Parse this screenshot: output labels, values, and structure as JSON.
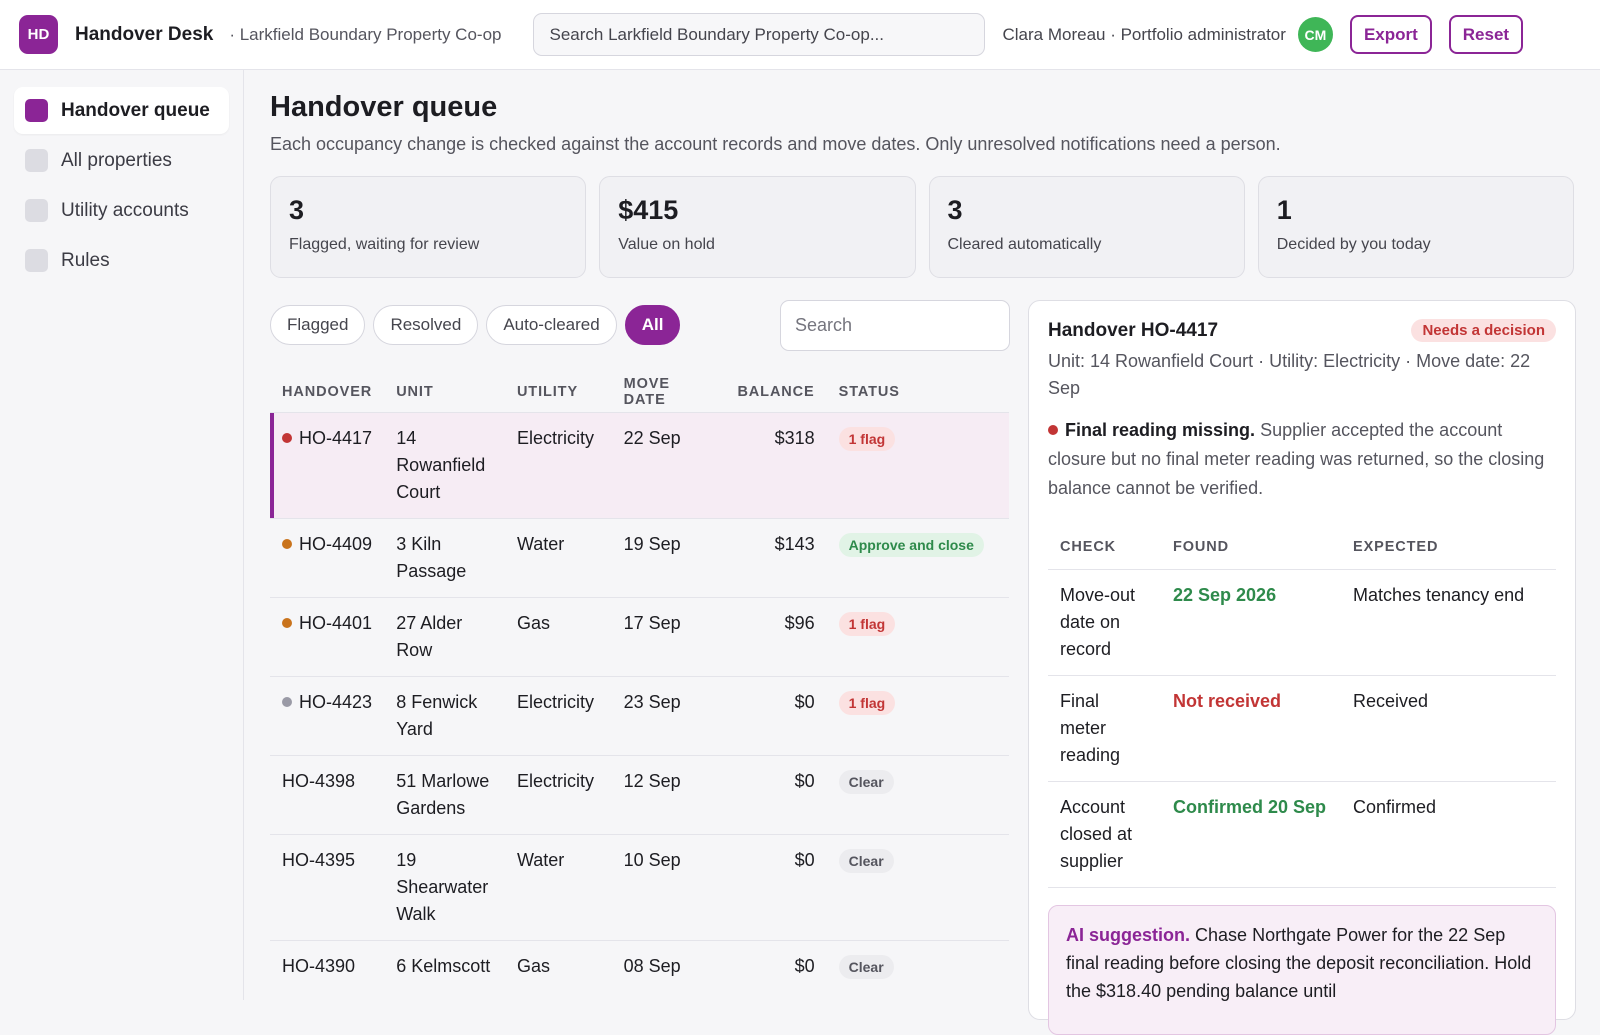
{
  "app": {
    "logo": "HD",
    "name": "Handover Desk",
    "org": "· Larkfield Boundary Property Co-op",
    "search_placeholder": "Search Larkfield Boundary Property Co-op...",
    "user": "Clara Moreau · Portfolio administrator",
    "avatar": "CM",
    "export_label": "Export",
    "reset_label": "Reset"
  },
  "sidebar": {
    "items": [
      {
        "label": "Handover queue",
        "active": true
      },
      {
        "label": "All properties",
        "active": false
      },
      {
        "label": "Utility accounts",
        "active": false
      },
      {
        "label": "Rules",
        "active": false
      }
    ]
  },
  "page": {
    "title": "Handover queue",
    "subtitle": "Each occupancy change is checked against the account records and move dates. Only unresolved notifications need a person."
  },
  "stats": [
    {
      "value": "3",
      "label": "Flagged, waiting for review"
    },
    {
      "value": "$415",
      "label": "Value on hold"
    },
    {
      "value": "3",
      "label": "Cleared automatically"
    },
    {
      "value": "1",
      "label": "Decided by you today"
    }
  ],
  "filters": {
    "chips": [
      "Flagged",
      "Resolved",
      "Auto-cleared",
      "All"
    ],
    "active": "All",
    "search_placeholder": "Search"
  },
  "queue": {
    "columns": [
      "HANDOVER",
      "UNIT",
      "UTILITY",
      "MOVE DATE",
      "BALANCE",
      "STATUS"
    ],
    "rows": [
      {
        "id": "HO-4417",
        "unit": "14 Rowanfield Court",
        "utility": "Electricity",
        "move": "22 Sep",
        "balance": "$318",
        "status": "1 flag",
        "kind": "flag",
        "dot": "#c23535",
        "selected": true
      },
      {
        "id": "HO-4409",
        "unit": "3 Kiln Passage",
        "utility": "Water",
        "move": "19 Sep",
        "balance": "$143",
        "status": "Approve and close",
        "kind": "ok",
        "dot": "#c9731c"
      },
      {
        "id": "HO-4401",
        "unit": "27 Alder Row",
        "utility": "Gas",
        "move": "17 Sep",
        "balance": "$96",
        "status": "1 flag",
        "kind": "flag",
        "dot": "#c9731c"
      },
      {
        "id": "HO-4423",
        "unit": "8 Fenwick Yard",
        "utility": "Electricity",
        "move": "23 Sep",
        "balance": "$0",
        "status": "1 flag",
        "kind": "flag",
        "dot": "#9a9aa6"
      },
      {
        "id": "HO-4398",
        "unit": "51 Marlowe Gardens",
        "utility": "Electricity",
        "move": "12 Sep",
        "balance": "$0",
        "status": "Clear",
        "kind": "clear",
        "dot": null
      },
      {
        "id": "HO-4395",
        "unit": "19 Shearwater Walk",
        "utility": "Water",
        "move": "10 Sep",
        "balance": "$0",
        "status": "Clear",
        "kind": "clear",
        "dot": null
      },
      {
        "id": "HO-4390",
        "unit": "6 Kelmscott",
        "utility": "Gas",
        "move": "08 Sep",
        "balance": "$0",
        "status": "Clear",
        "kind": "clear",
        "dot": null
      }
    ]
  },
  "detail": {
    "title": "Handover HO-4417",
    "badge": "Needs a decision",
    "meta": "Unit: 14 Rowanfield Court · Utility: Electricity · Move date: 22 Sep",
    "issue_title": "Final reading missing.",
    "issue_text": "Supplier accepted the account closure but no final meter reading was returned, so the closing balance cannot be verified.",
    "check_columns": [
      "CHECK",
      "FOUND",
      "EXPECTED"
    ],
    "checks": [
      {
        "check": "Move-out date on record",
        "found": "22 Sep 2026",
        "found_state": "green",
        "expected": "Matches tenancy end"
      },
      {
        "check": "Final meter reading",
        "found": "Not received",
        "found_state": "red",
        "expected": "Received"
      },
      {
        "check": "Account closed at supplier",
        "found": "Confirmed 20 Sep",
        "found_state": "green",
        "expected": "Confirmed"
      }
    ],
    "ai_label": "AI suggestion.",
    "ai_text": "Chase Northgate Power for the 22 Sep final reading before closing the deposit reconciliation. Hold the $318.40 pending balance until"
  }
}
